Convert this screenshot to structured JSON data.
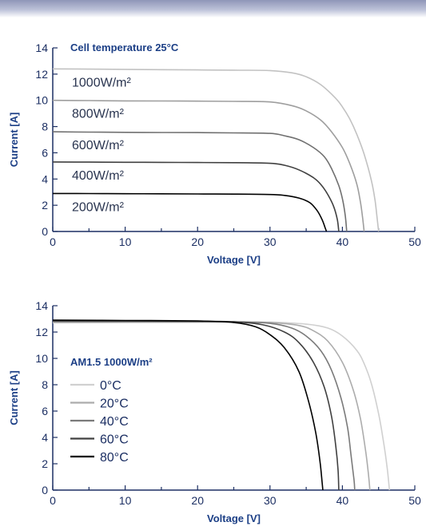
{
  "chart_data": [
    {
      "type": "line",
      "title": "Cell temperature 25°C",
      "xlabel": "Voltage [V]",
      "ylabel": "Current [A]",
      "xlim": [
        0,
        50
      ],
      "ylim": [
        0,
        14
      ],
      "xticks": [
        0,
        10,
        20,
        30,
        40,
        50
      ],
      "yticks": [
        0,
        2,
        4,
        6,
        8,
        10,
        12,
        14
      ],
      "grid": false,
      "series": [
        {
          "name": "1000W/m²",
          "color": "#c2c2c2",
          "values": [
            [
              0,
              12.4
            ],
            [
              5,
              12.38
            ],
            [
              10,
              12.36
            ],
            [
              15,
              12.34
            ],
            [
              20,
              12.32
            ],
            [
              25,
              12.3
            ],
            [
              30,
              12.27
            ],
            [
              33,
              12.1
            ],
            [
              35,
              11.8
            ],
            [
              37,
              11.2
            ],
            [
              39,
              10.2
            ],
            [
              40,
              9.5
            ],
            [
              41,
              8.6
            ],
            [
              42,
              7.4
            ],
            [
              43,
              5.9
            ],
            [
              44,
              3.9
            ],
            [
              44.5,
              2.4
            ],
            [
              44.8,
              1.0
            ],
            [
              45,
              0
            ]
          ]
        },
        {
          "name": "800W/m²",
          "color": "#9e9e9e",
          "values": [
            [
              0,
              10.0
            ],
            [
              5,
              9.98
            ],
            [
              10,
              9.96
            ],
            [
              15,
              9.95
            ],
            [
              20,
              9.94
            ],
            [
              25,
              9.92
            ],
            [
              30,
              9.88
            ],
            [
              33,
              9.6
            ],
            [
              35,
              9.2
            ],
            [
              37,
              8.5
            ],
            [
              38.5,
              7.6
            ],
            [
              40,
              6.4
            ],
            [
              41,
              5.2
            ],
            [
              42,
              3.6
            ],
            [
              42.5,
              2.2
            ],
            [
              42.8,
              1.0
            ],
            [
              43,
              0
            ]
          ]
        },
        {
          "name": "600W/m²",
          "color": "#707070",
          "values": [
            [
              0,
              7.6
            ],
            [
              5,
              7.58
            ],
            [
              10,
              7.56
            ],
            [
              15,
              7.55
            ],
            [
              20,
              7.54
            ],
            [
              25,
              7.52
            ],
            [
              30,
              7.48
            ],
            [
              32,
              7.3
            ],
            [
              34,
              7.0
            ],
            [
              36,
              6.4
            ],
            [
              37.5,
              5.7
            ],
            [
              38.5,
              4.8
            ],
            [
              39.5,
              3.5
            ],
            [
              40,
              2.5
            ],
            [
              40.4,
              1.2
            ],
            [
              40.6,
              0
            ]
          ]
        },
        {
          "name": "400W/m²",
          "color": "#404040",
          "values": [
            [
              0,
              5.3
            ],
            [
              5,
              5.29
            ],
            [
              10,
              5.28
            ],
            [
              15,
              5.27
            ],
            [
              20,
              5.26
            ],
            [
              25,
              5.25
            ],
            [
              30,
              5.2
            ],
            [
              32,
              5.05
            ],
            [
              34,
              4.7
            ],
            [
              36,
              4.1
            ],
            [
              37,
              3.6
            ],
            [
              38,
              2.8
            ],
            [
              38.8,
              1.9
            ],
            [
              39.3,
              0.9
            ],
            [
              39.5,
              0
            ]
          ]
        },
        {
          "name": "200W/m²",
          "color": "#000000",
          "values": [
            [
              0,
              2.9
            ],
            [
              5,
              2.89
            ],
            [
              10,
              2.88
            ],
            [
              15,
              2.87
            ],
            [
              20,
              2.86
            ],
            [
              25,
              2.85
            ],
            [
              30,
              2.82
            ],
            [
              32,
              2.75
            ],
            [
              34,
              2.55
            ],
            [
              35.5,
              2.2
            ],
            [
              36.5,
              1.6
            ],
            [
              37.2,
              0.9
            ],
            [
              37.6,
              0.3
            ],
            [
              37.8,
              0
            ]
          ]
        }
      ]
    },
    {
      "type": "line",
      "title": "",
      "xlabel": "Voltage [V]",
      "ylabel": "Current [A]",
      "xlim": [
        0,
        50
      ],
      "ylim": [
        0,
        14
      ],
      "xticks": [
        0,
        10,
        20,
        30,
        40,
        50
      ],
      "yticks": [
        0,
        2,
        4,
        6,
        8,
        10,
        12,
        14
      ],
      "grid": false,
      "legend": {
        "title": "AM1.5 1000W/m²",
        "placement": "left"
      },
      "series": [
        {
          "name": "0°C",
          "color": "#d0d0d0",
          "values": [
            [
              0,
              12.7
            ],
            [
              10,
              12.72
            ],
            [
              20,
              12.74
            ],
            [
              25,
              12.76
            ],
            [
              30,
              12.75
            ],
            [
              35,
              12.6
            ],
            [
              38,
              12.3
            ],
            [
              40,
              11.7
            ],
            [
              42,
              10.6
            ],
            [
              43,
              9.6
            ],
            [
              44,
              8.1
            ],
            [
              45,
              5.8
            ],
            [
              45.7,
              3.6
            ],
            [
              46.2,
              1.6
            ],
            [
              46.5,
              0
            ]
          ]
        },
        {
          "name": "20°C",
          "color": "#acacac",
          "values": [
            [
              0,
              12.75
            ],
            [
              10,
              12.76
            ],
            [
              20,
              12.77
            ],
            [
              25,
              12.77
            ],
            [
              30,
              12.72
            ],
            [
              34,
              12.5
            ],
            [
              36,
              12.1
            ],
            [
              38,
              11.3
            ],
            [
              40,
              9.7
            ],
            [
              41.5,
              7.6
            ],
            [
              42.5,
              5.4
            ],
            [
              43.2,
              3.0
            ],
            [
              43.6,
              1.2
            ],
            [
              43.8,
              0
            ]
          ]
        },
        {
          "name": "40°C",
          "color": "#7a7a7a",
          "values": [
            [
              0,
              12.8
            ],
            [
              10,
              12.8
            ],
            [
              20,
              12.79
            ],
            [
              25,
              12.78
            ],
            [
              30,
              12.66
            ],
            [
              33,
              12.3
            ],
            [
              35,
              11.7
            ],
            [
              37,
              10.6
            ],
            [
              38.5,
              9.1
            ],
            [
              39.8,
              7.0
            ],
            [
              40.7,
              4.8
            ],
            [
              41.2,
              2.6
            ],
            [
              41.6,
              0.8
            ],
            [
              41.7,
              0
            ]
          ]
        },
        {
          "name": "60°C",
          "color": "#404040",
          "values": [
            [
              0,
              12.85
            ],
            [
              10,
              12.84
            ],
            [
              20,
              12.82
            ],
            [
              25,
              12.78
            ],
            [
              29,
              12.55
            ],
            [
              32,
              12.0
            ],
            [
              34,
              11.2
            ],
            [
              36,
              9.7
            ],
            [
              37.5,
              7.8
            ],
            [
              38.5,
              5.6
            ],
            [
              39.1,
              3.3
            ],
            [
              39.4,
              1.5
            ],
            [
              39.5,
              0
            ]
          ]
        },
        {
          "name": "80°C",
          "color": "#000000",
          "values": [
            [
              0,
              12.9
            ],
            [
              10,
              12.88
            ],
            [
              20,
              12.84
            ],
            [
              25,
              12.72
            ],
            [
              28,
              12.4
            ],
            [
              30,
              11.8
            ],
            [
              32,
              10.8
            ],
            [
              34,
              9.0
            ],
            [
              35.3,
              6.8
            ],
            [
              36.3,
              4.4
            ],
            [
              36.9,
              2.2
            ],
            [
              37.2,
              0.6
            ],
            [
              37.3,
              0
            ]
          ]
        }
      ]
    }
  ]
}
